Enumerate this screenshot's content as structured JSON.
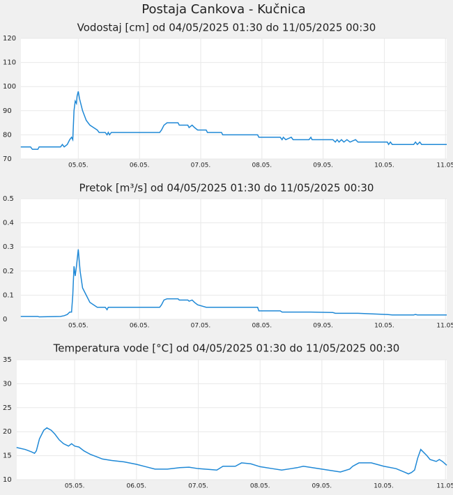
{
  "title": "Postaja Cankova - Kučnica",
  "chart_data": [
    {
      "type": "line",
      "title": "Vodostaj [cm] od 04/05/2025 01:30 do 11/05/2025 00:30",
      "x": [
        4.06,
        4.22,
        4.25,
        4.34,
        4.36,
        4.71,
        4.74,
        4.77,
        4.82,
        4.86,
        4.89,
        4.91,
        4.93,
        4.95,
        4.97,
        4.98,
        5.0,
        5.02,
        5.07,
        5.13,
        5.19,
        5.25,
        5.31,
        5.34,
        5.44,
        5.47,
        5.49,
        5.51,
        5.54,
        6.33,
        6.36,
        6.4,
        6.45,
        6.63,
        6.65,
        6.79,
        6.81,
        6.86,
        6.9,
        6.95,
        7.09,
        7.11,
        7.34,
        7.36,
        7.93,
        7.95,
        8.3,
        8.33,
        8.35,
        8.39,
        8.48,
        8.51,
        8.77,
        8.8,
        8.82,
        9.16,
        9.2,
        9.23,
        9.26,
        9.3,
        9.34,
        9.39,
        9.44,
        9.53,
        9.57,
        10.05,
        10.07,
        10.1,
        10.13,
        10.48,
        10.51,
        10.54,
        10.58,
        10.61,
        11.02
      ],
      "values": [
        75,
        75,
        74,
        74,
        75,
        75,
        76,
        75,
        76,
        78,
        79,
        78,
        90,
        94,
        93,
        96,
        98,
        95,
        90,
        86,
        84,
        83,
        82,
        81,
        81,
        80,
        81,
        80,
        81,
        81,
        82,
        84,
        85,
        85,
        84,
        84,
        83,
        84,
        83,
        82,
        82,
        81,
        81,
        80,
        80,
        79,
        79,
        78,
        79,
        78,
        79,
        78,
        78,
        79,
        78,
        78,
        77,
        78,
        77,
        78,
        77,
        78,
        77,
        78,
        77,
        77,
        76,
        77,
        76,
        76,
        77,
        76,
        77,
        76,
        76
      ],
      "color": "#1e88d6",
      "xlim": [
        4.0625,
        11.02
      ],
      "xticks": [
        {
          "value": 5,
          "label": "05.05."
        },
        {
          "value": 6,
          "label": "06.05."
        },
        {
          "value": 7,
          "label": "07.05."
        },
        {
          "value": 8,
          "label": "08.05."
        },
        {
          "value": 9,
          "label": "09.05."
        },
        {
          "value": 10,
          "label": "10.05."
        },
        {
          "value": 11,
          "label": "11.05"
        }
      ],
      "ylim": [
        70,
        120
      ],
      "yticks": [
        70,
        80,
        90,
        100,
        110,
        120
      ],
      "grid": true
    },
    {
      "type": "line",
      "title": "Pretok [m³/s] od 04/05/2025 01:30 do 11/05/2025 00:30",
      "x": [
        4.06,
        4.34,
        4.36,
        4.71,
        4.77,
        4.82,
        4.86,
        4.89,
        4.91,
        4.93,
        4.95,
        4.97,
        5.0,
        5.03,
        5.07,
        5.13,
        5.19,
        5.25,
        5.31,
        5.44,
        5.47,
        5.49,
        5.51,
        6.33,
        6.36,
        6.4,
        6.45,
        6.63,
        6.65,
        6.79,
        6.81,
        6.86,
        6.9,
        6.95,
        7.09,
        7.93,
        7.95,
        8.3,
        8.33,
        8.77,
        8.8,
        9.16,
        9.2,
        9.3,
        9.34,
        9.57,
        10.05,
        10.13,
        10.48,
        10.51,
        10.54,
        11.02
      ],
      "values": [
        0.012,
        0.012,
        0.01,
        0.012,
        0.015,
        0.02,
        0.03,
        0.03,
        0.1,
        0.22,
        0.18,
        0.22,
        0.29,
        0.2,
        0.13,
        0.1,
        0.07,
        0.06,
        0.05,
        0.05,
        0.04,
        0.05,
        0.05,
        0.05,
        0.06,
        0.08,
        0.085,
        0.085,
        0.08,
        0.08,
        0.075,
        0.08,
        0.07,
        0.06,
        0.05,
        0.05,
        0.035,
        0.035,
        0.03,
        0.03,
        0.03,
        0.028,
        0.025,
        0.025,
        0.025,
        0.025,
        0.02,
        0.018,
        0.018,
        0.02,
        0.018,
        0.018
      ],
      "color": "#1e88d6",
      "xlim": [
        4.0625,
        11.02
      ],
      "xticks": [
        {
          "value": 5,
          "label": "05.05."
        },
        {
          "value": 6,
          "label": "06.05."
        },
        {
          "value": 7,
          "label": "07.05."
        },
        {
          "value": 8,
          "label": "08.05."
        },
        {
          "value": 9,
          "label": "09.05."
        },
        {
          "value": 10,
          "label": "10.05."
        },
        {
          "value": 11,
          "label": "11.05"
        }
      ],
      "ylim": [
        0,
        0.5
      ],
      "yticks": [
        0,
        0.1,
        0.2,
        0.3,
        0.4,
        0.5
      ],
      "grid": true
    },
    {
      "type": "line",
      "title": "Temperatura vode [°C] od 04/05/2025 01:30 do 11/05/2025 00:30",
      "x": [
        4.06,
        4.2,
        4.3,
        4.35,
        4.38,
        4.43,
        4.5,
        4.55,
        4.62,
        4.68,
        4.75,
        4.82,
        4.9,
        4.95,
        5.0,
        5.07,
        5.15,
        5.25,
        5.35,
        5.45,
        5.6,
        5.8,
        6.0,
        6.15,
        6.3,
        6.5,
        6.7,
        6.85,
        7.0,
        7.2,
        7.3,
        7.4,
        7.6,
        7.7,
        7.85,
        8.0,
        8.2,
        8.35,
        8.5,
        8.6,
        8.7,
        8.9,
        9.1,
        9.3,
        9.45,
        9.5,
        9.6,
        9.8,
        10.0,
        10.2,
        10.35,
        10.4,
        10.45,
        10.5,
        10.55,
        10.6,
        10.7,
        10.75,
        10.85,
        10.9,
        10.95,
        11.02
      ],
      "values": [
        16.7,
        16.3,
        15.8,
        15.5,
        16,
        18.5,
        20.3,
        20.8,
        20.3,
        19.5,
        18.3,
        17.5,
        17,
        17.5,
        17,
        16.8,
        16,
        15.3,
        14.8,
        14.3,
        14,
        13.7,
        13.2,
        12.7,
        12.2,
        12.2,
        12.5,
        12.6,
        12.3,
        12.1,
        12,
        12.8,
        12.8,
        13.5,
        13.3,
        12.7,
        12.3,
        12,
        12.3,
        12.5,
        12.8,
        12.4,
        12,
        11.6,
        12.2,
        12.8,
        13.5,
        13.5,
        12.8,
        12.3,
        11.5,
        11.2,
        11.5,
        12,
        14.5,
        16.3,
        15,
        14.2,
        13.8,
        14.2,
        13.8,
        13
      ],
      "color": "#1e88d6",
      "xlim": [
        4.0625,
        11.02
      ],
      "xticks": [
        {
          "value": 5,
          "label": "05.05."
        },
        {
          "value": 6,
          "label": "06.05."
        },
        {
          "value": 7,
          "label": "07.05."
        },
        {
          "value": 8,
          "label": "08.05."
        },
        {
          "value": 9,
          "label": "09.05."
        },
        {
          "value": 10,
          "label": "10.05."
        },
        {
          "value": 11,
          "label": "11.05"
        }
      ],
      "ylim": [
        10,
        35
      ],
      "yticks": [
        10,
        15,
        20,
        25,
        30,
        35
      ],
      "grid": true
    }
  ]
}
